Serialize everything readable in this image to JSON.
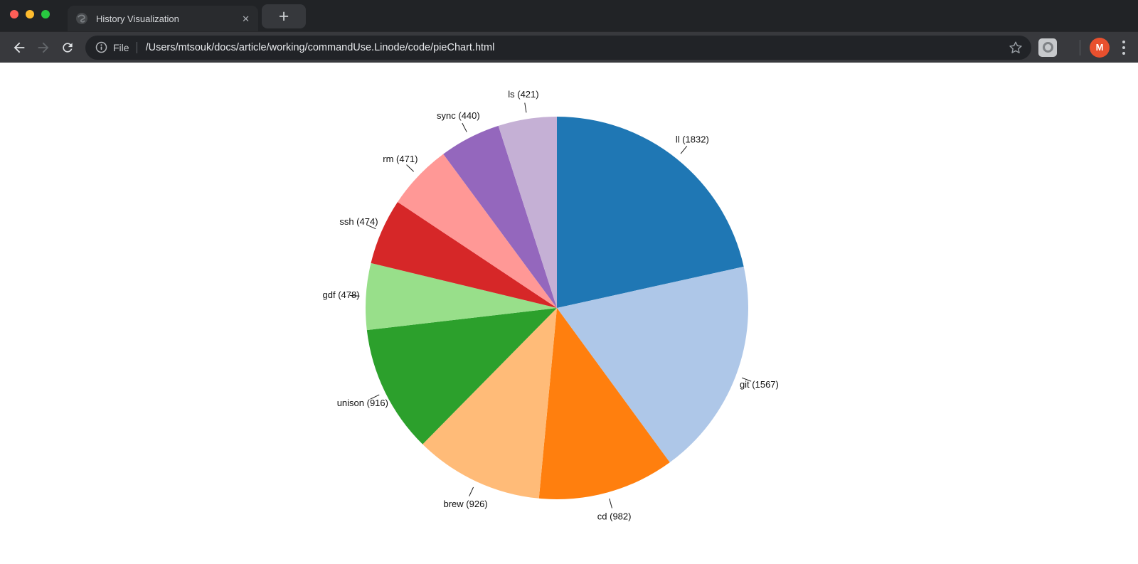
{
  "window": {
    "traffic_lights": [
      {
        "name": "close",
        "color": "#ff5f57"
      },
      {
        "name": "minimize",
        "color": "#febc2e"
      },
      {
        "name": "zoom",
        "color": "#28c840"
      }
    ],
    "tab": {
      "title": "History Visualization",
      "close_glyph": "✕"
    },
    "new_tab_glyph": "+"
  },
  "toolbar": {
    "icons": {
      "back": "arrow-left",
      "forward": "arrow-right",
      "reload": "refresh",
      "page_info": "info-circle",
      "bookmark": "star-outline",
      "extension": "extension-logo",
      "menu": "kebab-vertical-dots"
    },
    "scheme_label": "File",
    "url": "/Users/mtsouk/docs/article/working/commandUse.Linode/code/pieChart.html",
    "avatar": {
      "initial": "M",
      "color": "#e8502e"
    }
  },
  "chart_data": {
    "type": "pie",
    "title": "History Visualization",
    "legend": false,
    "label_format": "name (count)",
    "layout": {
      "start_angle_deg": 0,
      "direction": "clockwise",
      "label_style": "outside-with-ticks"
    },
    "total": 8507,
    "slices": [
      {
        "label": "ll",
        "value": 1832,
        "display": "ll (1832)",
        "color": "#1f77b4"
      },
      {
        "label": "git",
        "value": 1567,
        "display": "git (1567)",
        "color": "#aec7e8"
      },
      {
        "label": "cd",
        "value": 982,
        "display": "cd (982)",
        "color": "#ff7f0e"
      },
      {
        "label": "brew",
        "value": 926,
        "display": "brew (926)",
        "color": "#ffbb78"
      },
      {
        "label": "unison",
        "value": 916,
        "display": "unison (916)",
        "color": "#2ca02c"
      },
      {
        "label": "gdf",
        "value": 478,
        "display": "gdf (478)",
        "color": "#98df8a"
      },
      {
        "label": "ssh",
        "value": 474,
        "display": "ssh (474)",
        "color": "#d62728"
      },
      {
        "label": "rm",
        "value": 471,
        "display": "rm (471)",
        "color": "#ff9896"
      },
      {
        "label": "sync",
        "value": 440,
        "display": "sync (440)",
        "color": "#9467bd"
      },
      {
        "label": "ls",
        "value": 421,
        "display": "ls (421)",
        "color": "#c5b0d5"
      }
    ]
  }
}
